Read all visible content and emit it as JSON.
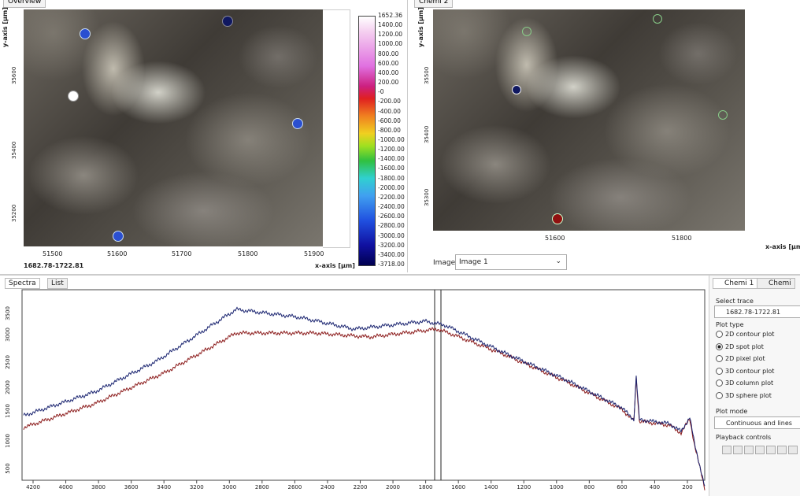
{
  "overview": {
    "tab": "Overview",
    "y_axis_label": "y-axis [µm]",
    "y_ticks": [
      "35600",
      "35400",
      "35200"
    ],
    "x_ticks": [
      "51500",
      "51600",
      "51700",
      "51800",
      "51900"
    ],
    "x_axis_label": "x-axis [µm]",
    "trace": "1682.78-1722.81",
    "colorbar": [
      "1652.36",
      "1400.00",
      "1200.00",
      "1000.00",
      "800.00",
      "600.00",
      "400.00",
      "200.00",
      "-0",
      "-200.00",
      "-400.00",
      "-600.00",
      "-800.00",
      "-1000.00",
      "-1200.00",
      "-1400.00",
      "-1600.00",
      "-1800.00",
      "-2000.00",
      "-2200.00",
      "-2400.00",
      "-2600.00",
      "-2800.00",
      "-3000.00",
      "-3200.00",
      "-3400.00",
      "-3718.00"
    ]
  },
  "chemi2": {
    "tab": "Chemi 2",
    "y_axis_label": "y-axis [µm]",
    "y_ticks": [
      "35500",
      "35400",
      "35300"
    ],
    "x_ticks": [
      "51600",
      "51800"
    ],
    "x_axis_label": "x-axis [µm]",
    "image_label": "Image:",
    "image_select": "Image 1"
  },
  "spectra": {
    "tabs": [
      "Spectra",
      "List"
    ],
    "x_ticks": [
      "4200",
      "4000",
      "3800",
      "3600",
      "3400",
      "3200",
      "3000",
      "2800",
      "2600",
      "2400",
      "2200",
      "2000",
      "1800",
      "1600",
      "1400",
      "1200",
      "1000",
      "800",
      "600",
      "400",
      "200"
    ],
    "y_ticks": [
      "3500",
      "3000",
      "2500",
      "2000",
      "1500",
      "1000",
      "500"
    ]
  },
  "side": {
    "tabs": [
      "Chemi 1",
      "Chemi"
    ],
    "select_trace": "Select trace",
    "trace": "1682.78-1722.81",
    "plot_type": "Plot type",
    "options": [
      "2D contour plot",
      "2D spot plot",
      "2D pixel plot",
      "3D contour plot",
      "3D column plot",
      "3D sphere plot"
    ],
    "plot_mode": "Plot mode",
    "mode": "Continuous and lines",
    "playback": "Playback controls"
  }
}
